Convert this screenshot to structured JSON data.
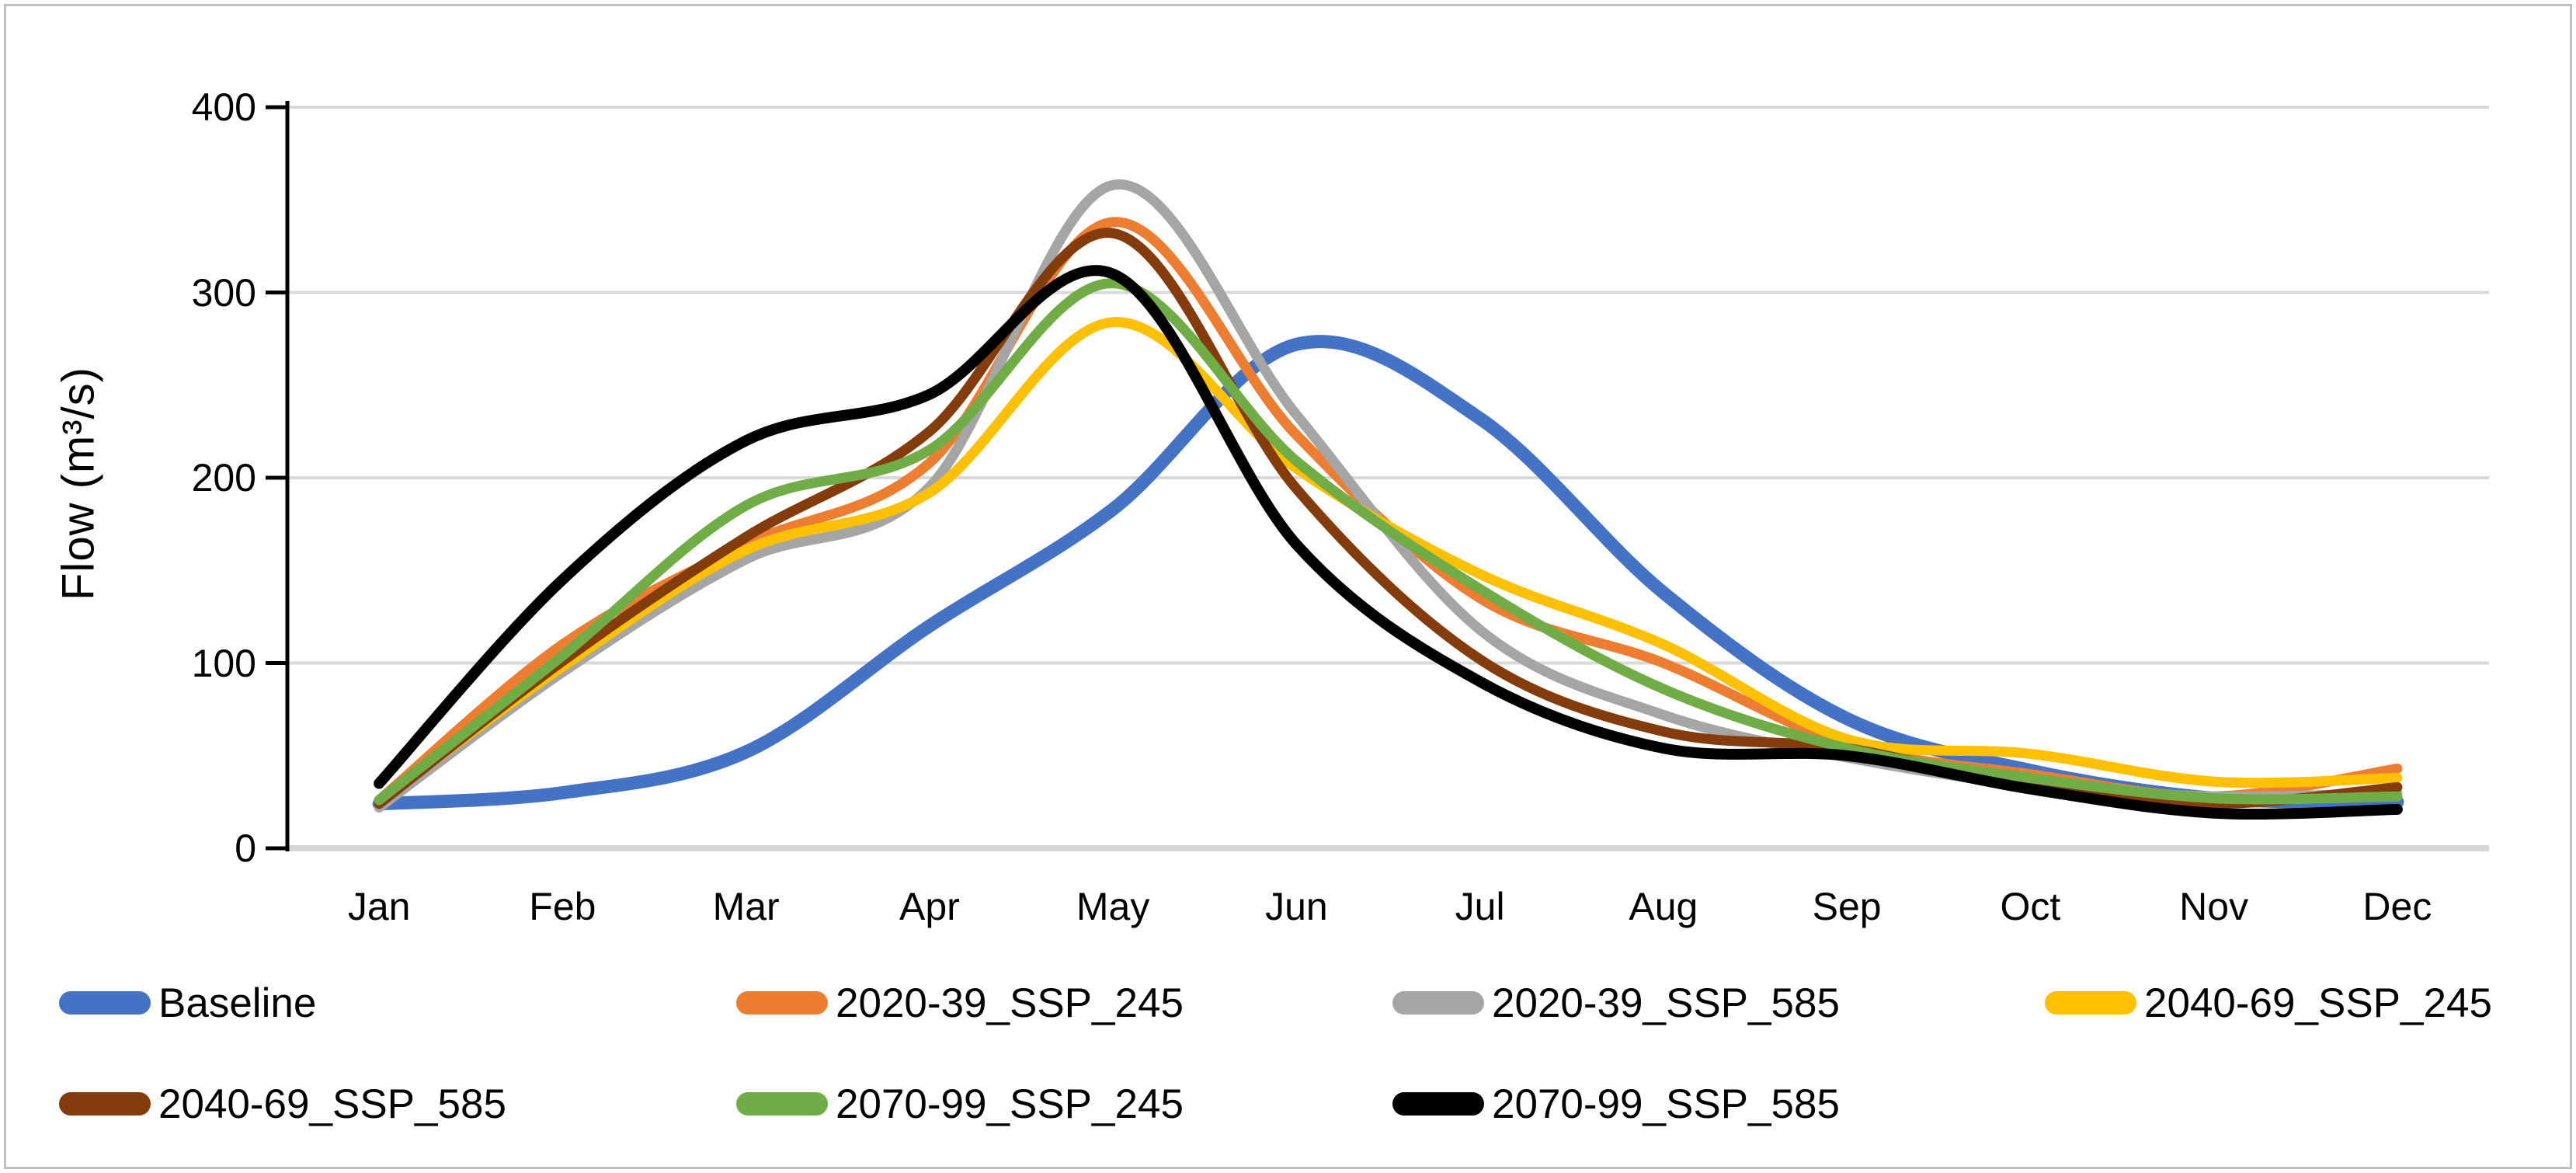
{
  "figure": {
    "border_color": "#BFBFBF",
    "background": "#FFFFFF"
  },
  "chart_data": {
    "type": "line",
    "title": "",
    "xlabel": "",
    "ylabel": "Flow (m³/s)",
    "ylim": [
      0,
      400
    ],
    "yticks": [
      0,
      100,
      200,
      300,
      400
    ],
    "grid": true,
    "smooth_lines": true,
    "legend_position": "bottom-left-two-rows",
    "categories": [
      "Jan",
      "Feb",
      "Mar",
      "Apr",
      "May",
      "Jun",
      "Jul",
      "Aug",
      "Sep",
      "Oct",
      "Nov",
      "Dec"
    ],
    "series": [
      {
        "name": "Baseline",
        "color": "#4472C4",
        "stroke_width": 17,
        "values": [
          24,
          30,
          52,
          120,
          183,
          272,
          232,
          138,
          70,
          42,
          27,
          25
        ]
      },
      {
        "name": "2020-39_SSP_245",
        "color": "#ED7D31",
        "stroke_width": 13,
        "values": [
          26,
          110,
          164,
          208,
          338,
          223,
          135,
          100,
          56,
          40,
          28,
          43
        ]
      },
      {
        "name": "2020-39_SSP_585",
        "color": "#A5A5A5",
        "stroke_width": 13,
        "values": [
          22,
          95,
          156,
          195,
          358,
          234,
          118,
          72,
          49,
          34,
          28,
          30
        ]
      },
      {
        "name": "2040-69_SSP_245",
        "color": "#FFC000",
        "stroke_width": 13,
        "values": [
          25,
          98,
          161,
          192,
          284,
          205,
          148,
          110,
          59,
          51,
          36,
          38
        ]
      },
      {
        "name": "2040-69_SSP_585",
        "color": "#843C0C",
        "stroke_width": 13,
        "values": [
          24,
          101,
          168,
          225,
          332,
          194,
          102,
          63,
          54,
          33,
          24,
          33
        ]
      },
      {
        "name": "2070-99_SSP_245",
        "color": "#70AD47",
        "stroke_width": 13,
        "values": [
          26,
          104,
          185,
          215,
          305,
          209,
          140,
          86,
          54,
          38,
          27,
          28
        ]
      },
      {
        "name": "2070-99_SSP_585",
        "color": "#000000",
        "stroke_width": 14,
        "values": [
          35,
          145,
          220,
          245,
          310,
          164,
          90,
          54,
          50,
          32,
          19,
          21
        ]
      }
    ]
  }
}
